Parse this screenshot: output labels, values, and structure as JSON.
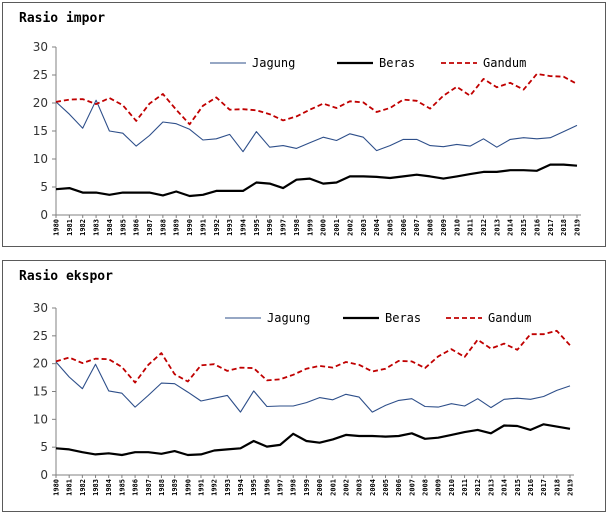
{
  "chart_data": [
    {
      "type": "line",
      "title": "Rasio impor",
      "xlabel": "",
      "ylabel": "",
      "ylim": [
        0,
        30
      ],
      "yticks": [
        0,
        5,
        10,
        15,
        20,
        25,
        30
      ],
      "grid": false,
      "legend_position": "top-right",
      "x": [
        "1980",
        "1981",
        "1982",
        "1983",
        "1984",
        "1985",
        "1986",
        "1987",
        "1988",
        "1989",
        "1990",
        "1991",
        "1992",
        "1993",
        "1994",
        "1995",
        "1996",
        "1997",
        "1998",
        "1999",
        "2000",
        "2001",
        "2002",
        "2003",
        "2004",
        "2005",
        "2006",
        "2007",
        "2008",
        "2009",
        "2010",
        "2011",
        "2012",
        "2013",
        "2014",
        "2015",
        "2016",
        "2017",
        "2018",
        "2019"
      ],
      "series": [
        {
          "name": "Jagung",
          "color": "#2e4f8a",
          "style": "solid-thin",
          "values": [
            20.2,
            18.0,
            15.5,
            20.5,
            15.0,
            14.6,
            12.3,
            14.2,
            16.6,
            16.3,
            15.3,
            13.4,
            13.6,
            14.4,
            11.3,
            14.9,
            12.1,
            12.4,
            11.9,
            12.9,
            13.9,
            13.3,
            14.5,
            13.9,
            11.5,
            12.4,
            13.5,
            13.5,
            12.4,
            12.2,
            12.6,
            12.3,
            13.6,
            12.1,
            13.5,
            13.8,
            13.6,
            13.8,
            14.9,
            16.0
          ]
        },
        {
          "name": "Beras",
          "color": "#000000",
          "style": "solid-thick",
          "values": [
            4.6,
            4.8,
            4.0,
            4.0,
            3.6,
            4.0,
            4.0,
            4.0,
            3.5,
            4.2,
            3.4,
            3.6,
            4.3,
            4.3,
            4.3,
            5.8,
            5.6,
            4.8,
            6.3,
            6.5,
            5.6,
            5.8,
            6.9,
            6.9,
            6.8,
            6.6,
            6.9,
            7.2,
            6.9,
            6.5,
            6.9,
            7.3,
            7.7,
            7.7,
            8.0,
            8.0,
            7.9,
            9.0,
            9.0,
            8.8
          ]
        },
        {
          "name": "Gandum",
          "color": "#c00000",
          "style": "dashed",
          "values": [
            20.2,
            20.6,
            20.7,
            19.8,
            20.9,
            19.6,
            16.8,
            19.9,
            21.6,
            18.8,
            16.2,
            19.5,
            21.0,
            18.8,
            18.9,
            18.7,
            18.0,
            16.9,
            17.6,
            18.8,
            19.9,
            19.1,
            20.3,
            20.1,
            18.4,
            19.1,
            20.6,
            20.4,
            19.0,
            21.3,
            22.9,
            21.3,
            24.3,
            22.8,
            23.6,
            22.4,
            25.2,
            24.8,
            24.7,
            23.4
          ]
        }
      ]
    },
    {
      "type": "line",
      "title": "Rasio ekspor",
      "xlabel": "",
      "ylabel": "",
      "ylim": [
        0,
        30
      ],
      "yticks": [
        0,
        5,
        10,
        15,
        20,
        25,
        30
      ],
      "grid": false,
      "legend_position": "top-right",
      "x": [
        "1980",
        "1981",
        "1982",
        "1983",
        "1984",
        "1985",
        "1986",
        "1987",
        "1988",
        "1989",
        "1990",
        "1991",
        "1992",
        "1993",
        "1994",
        "1995",
        "1996",
        "1997",
        "1998",
        "1999",
        "2000",
        "2001",
        "2002",
        "2003",
        "2004",
        "2005",
        "2006",
        "2007",
        "2008",
        "2009",
        "2010",
        "2011",
        "2012",
        "2013",
        "2014",
        "2015",
        "2016",
        "2017",
        "2018",
        "2019"
      ],
      "series": [
        {
          "name": "Jagung",
          "color": "#2e4f8a",
          "style": "solid-thin",
          "values": [
            20.3,
            17.6,
            15.5,
            19.9,
            15.1,
            14.7,
            12.2,
            14.3,
            16.5,
            16.4,
            14.9,
            13.3,
            13.8,
            14.3,
            11.3,
            15.1,
            12.3,
            12.4,
            12.4,
            13.0,
            13.9,
            13.5,
            14.5,
            14.0,
            11.3,
            12.5,
            13.4,
            13.7,
            12.3,
            12.2,
            12.8,
            12.4,
            13.7,
            12.1,
            13.6,
            13.8,
            13.6,
            14.1,
            15.2,
            16.0
          ]
        },
        {
          "name": "Beras",
          "color": "#000000",
          "style": "solid-thick",
          "values": [
            4.8,
            4.6,
            4.1,
            3.7,
            3.9,
            3.6,
            4.1,
            4.1,
            3.8,
            4.3,
            3.6,
            3.7,
            4.4,
            4.6,
            4.8,
            6.1,
            5.1,
            5.4,
            7.4,
            6.1,
            5.8,
            6.4,
            7.2,
            7.0,
            7.0,
            6.9,
            7.0,
            7.5,
            6.5,
            6.7,
            7.2,
            7.7,
            8.1,
            7.5,
            8.9,
            8.8,
            8.1,
            9.1,
            8.7,
            8.3
          ]
        },
        {
          "name": "Gandum",
          "color": "#c00000",
          "style": "dashed",
          "values": [
            20.4,
            21.1,
            20.1,
            20.9,
            20.8,
            19.4,
            16.6,
            19.8,
            21.9,
            18.1,
            16.8,
            19.7,
            19.9,
            18.7,
            19.3,
            19.2,
            17.0,
            17.2,
            18.0,
            19.1,
            19.6,
            19.3,
            20.3,
            19.8,
            18.6,
            19.1,
            20.5,
            20.4,
            19.2,
            21.3,
            22.6,
            21.2,
            24.3,
            22.7,
            23.6,
            22.5,
            25.3,
            25.3,
            25.9,
            23.3
          ]
        }
      ]
    }
  ]
}
